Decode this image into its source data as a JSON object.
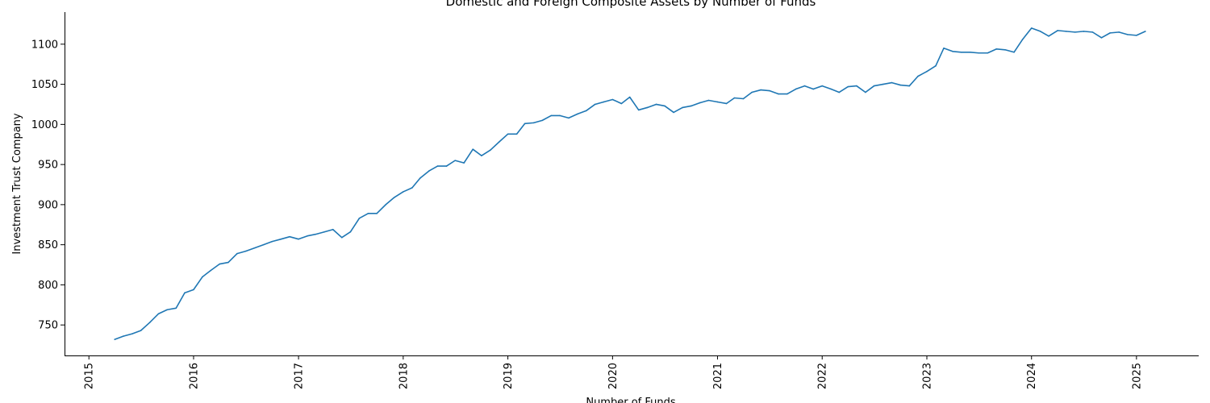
{
  "chart_data": {
    "type": "line",
    "title": "Domestic and Foreign Composite Assets by Number of Funds",
    "xlabel": "Number of Funds",
    "ylabel": "Investment Trust Company",
    "x_axis_type": "date",
    "xlim": [
      "2014-10-08",
      "2025-08-06"
    ],
    "ylim": [
      712,
      1140
    ],
    "x_ticks": [
      "2015",
      "2016",
      "2017",
      "2018",
      "2019",
      "2020",
      "2021",
      "2022",
      "2023",
      "2024",
      "2025"
    ],
    "y_ticks": [
      750,
      800,
      850,
      900,
      950,
      1000,
      1050,
      1100
    ],
    "grid": false,
    "line_color": "#1f77b4",
    "series": [
      {
        "x": [
          "2015-04-01",
          "2015-05-01",
          "2015-06-01",
          "2015-07-01",
          "2015-08-01",
          "2015-09-01",
          "2015-10-01",
          "2015-11-01",
          "2015-12-01",
          "2016-01-01",
          "2016-02-01",
          "2016-03-01",
          "2016-04-01",
          "2016-05-01",
          "2016-06-01",
          "2016-07-01",
          "2016-08-01",
          "2016-09-01",
          "2016-10-01",
          "2016-11-01",
          "2016-12-01",
          "2017-01-01",
          "2017-02-01",
          "2017-03-01",
          "2017-04-01",
          "2017-05-01",
          "2017-06-01",
          "2017-07-01",
          "2017-08-01",
          "2017-09-01",
          "2017-10-01",
          "2017-11-01",
          "2017-12-01",
          "2018-01-01",
          "2018-02-01",
          "2018-03-01",
          "2018-04-01",
          "2018-05-01",
          "2018-06-01",
          "2018-07-01",
          "2018-08-01",
          "2018-09-01",
          "2018-10-01",
          "2018-11-01",
          "2018-12-01",
          "2019-01-01",
          "2019-02-01",
          "2019-03-01",
          "2019-04-01",
          "2019-05-01",
          "2019-06-01",
          "2019-07-01",
          "2019-08-01",
          "2019-09-01",
          "2019-10-01",
          "2019-11-01",
          "2019-12-01",
          "2020-01-01",
          "2020-02-01",
          "2020-03-01",
          "2020-04-01",
          "2020-05-01",
          "2020-06-01",
          "2020-07-01",
          "2020-08-01",
          "2020-09-01",
          "2020-10-01",
          "2020-11-01",
          "2020-12-01",
          "2021-01-01",
          "2021-02-01",
          "2021-03-01",
          "2021-04-01",
          "2021-05-01",
          "2021-06-01",
          "2021-07-01",
          "2021-08-01",
          "2021-09-01",
          "2021-10-01",
          "2021-11-01",
          "2021-12-01",
          "2022-01-01",
          "2022-02-01",
          "2022-03-01",
          "2022-04-01",
          "2022-05-01",
          "2022-06-01",
          "2022-07-01",
          "2022-08-01",
          "2022-09-01",
          "2022-10-01",
          "2022-11-01",
          "2022-12-01",
          "2023-01-01",
          "2023-02-01",
          "2023-03-01",
          "2023-04-01",
          "2023-05-01",
          "2023-06-01",
          "2023-07-01",
          "2023-08-01",
          "2023-09-01",
          "2023-10-01",
          "2023-11-01",
          "2023-12-01",
          "2024-01-01",
          "2024-02-01",
          "2024-03-01",
          "2024-04-01",
          "2024-05-01",
          "2024-06-01",
          "2024-07-01",
          "2024-08-01",
          "2024-09-01",
          "2024-10-01",
          "2024-11-01",
          "2024-12-01",
          "2025-01-01",
          "2025-02-01"
        ],
        "y": [
          732,
          736,
          739,
          743,
          753,
          764,
          769,
          771,
          790,
          794,
          810,
          818,
          826,
          828,
          839,
          842,
          846,
          850,
          854,
          857,
          860,
          857,
          861,
          863,
          866,
          869,
          859,
          866,
          883,
          889,
          889,
          900,
          909,
          916,
          921,
          933,
          942,
          948,
          948,
          955,
          952,
          969,
          961,
          968,
          978,
          988,
          988,
          1001,
          1002,
          1005,
          1011,
          1011,
          1008,
          1013,
          1017,
          1025,
          1028,
          1031,
          1026,
          1034,
          1018,
          1021,
          1025,
          1023,
          1015,
          1021,
          1023,
          1027,
          1030,
          1028,
          1026,
          1033,
          1032,
          1040,
          1043,
          1042,
          1038,
          1038,
          1044,
          1048,
          1044,
          1048,
          1044,
          1040,
          1047,
          1048,
          1040,
          1048,
          1050,
          1052,
          1049,
          1048,
          1060,
          1066,
          1073,
          1095,
          1091,
          1090,
          1090,
          1089,
          1089,
          1094,
          1093,
          1090,
          1106,
          1120,
          1116,
          1110,
          1117,
          1116,
          1115,
          1116,
          1115,
          1108,
          1114,
          1115,
          1112,
          1111,
          1116
        ]
      }
    ]
  }
}
